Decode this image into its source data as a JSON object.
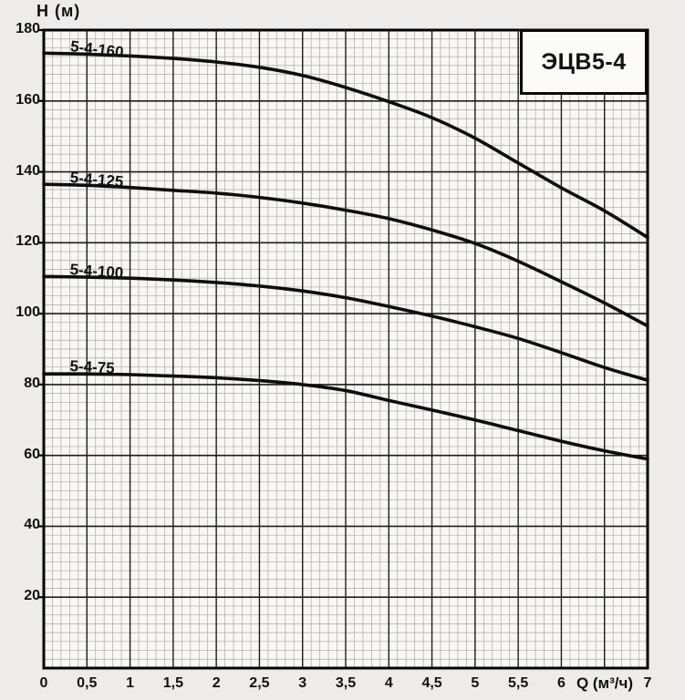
{
  "page": {
    "background": "#edecea",
    "plot_background": "#f8f7f4"
  },
  "colors": {
    "curve": "#0d0d0d",
    "grid_minor": "#a9a9a9",
    "grid_major": "#1c1c1c",
    "frame": "#000000",
    "text": "#111111"
  },
  "chart_data": {
    "type": "line",
    "title": "ЭЦВ5-4",
    "xlabel": "Q (м³/ч)",
    "ylabel": "H (м)",
    "xlim": [
      0,
      7
    ],
    "ylim": [
      0,
      180
    ],
    "grid": "on",
    "legend_position": "labels-on-curves",
    "x_major_step": 0.5,
    "x_minor_step": 0.1,
    "y_major_step": 20,
    "y_minor_step": 2.5,
    "x_tick_labels": [
      {
        "value": 0,
        "label": "0"
      },
      {
        "value": 0.5,
        "label": "0,5"
      },
      {
        "value": 1,
        "label": "1"
      },
      {
        "value": 1.5,
        "label": "1,5"
      },
      {
        "value": 2,
        "label": "2"
      },
      {
        "value": 2.5,
        "label": "2,5"
      },
      {
        "value": 3,
        "label": "3"
      },
      {
        "value": 3.5,
        "label": "3,5"
      },
      {
        "value": 4,
        "label": "4"
      },
      {
        "value": 4.5,
        "label": "4,5"
      },
      {
        "value": 5,
        "label": "5"
      },
      {
        "value": 5.5,
        "label": "5,5"
      },
      {
        "value": 6,
        "label": "6"
      },
      {
        "value": 7,
        "label": "7"
      }
    ],
    "y_tick_labels": [
      {
        "value": 20,
        "label": "20"
      },
      {
        "value": 40,
        "label": "40"
      },
      {
        "value": 60,
        "label": "60"
      },
      {
        "value": 80,
        "label": "80"
      },
      {
        "value": 100,
        "label": "100"
      },
      {
        "value": 120,
        "label": "120"
      },
      {
        "value": 140,
        "label": "140"
      },
      {
        "value": 160,
        "label": "160"
      },
      {
        "value": 180,
        "label": "180"
      }
    ],
    "x": [
      0,
      0.5,
      1,
      1.5,
      2,
      2.5,
      3,
      3.5,
      4,
      4.5,
      5,
      5.5,
      6,
      6.5,
      7
    ],
    "series": [
      {
        "name": "5-4-160",
        "values": [
          173.5,
          173.2,
          172.7,
          172.0,
          171.0,
          169.5,
          167.2,
          163.8,
          159.8,
          155.3,
          149.5,
          142.5,
          135.5,
          129.0,
          121.5
        ]
      },
      {
        "name": "5-4-125",
        "values": [
          136.5,
          136.2,
          135.6,
          134.8,
          134.0,
          132.8,
          131.2,
          129.2,
          126.8,
          123.6,
          119.8,
          114.8,
          109.0,
          103.0,
          96.5
        ]
      },
      {
        "name": "5-4-100",
        "values": [
          110.5,
          110.3,
          110.0,
          109.5,
          108.8,
          107.8,
          106.4,
          104.5,
          102.0,
          99.3,
          96.3,
          93.0,
          89.0,
          84.8,
          81.2
        ]
      },
      {
        "name": "5-4-75",
        "values": [
          83.0,
          83.0,
          82.8,
          82.4,
          81.9,
          81.1,
          80.0,
          78.3,
          75.5,
          72.8,
          70.0,
          67.0,
          64.0,
          61.3,
          59.0
        ]
      }
    ]
  }
}
